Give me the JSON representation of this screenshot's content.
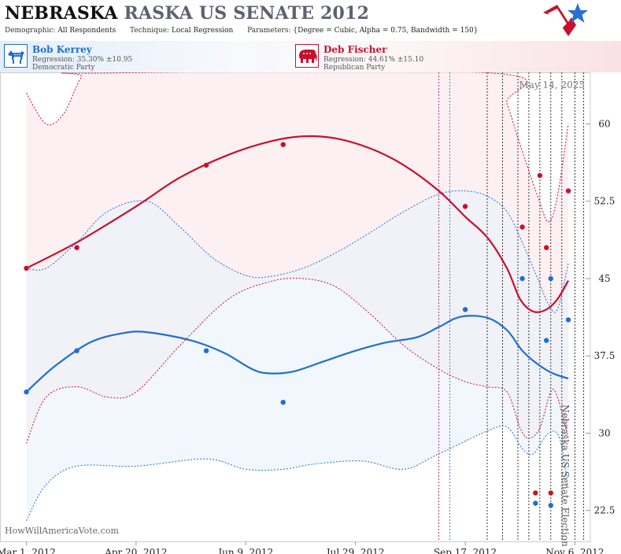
{
  "header": {
    "title_state": "NEBRASKA",
    "title_race": "RASKA US SENATE 2012",
    "demographic_label": "Demographic:",
    "demographic_value": "All Respondents",
    "technique_label": "Technique:",
    "technique_value": "Local Regression",
    "parameters_label": "Parameters:",
    "parameters_value": "{Degree = Cubic, Alpha = 0.75, Bandwidth = 150}",
    "logo_icon": "star-flag-logo-icon"
  },
  "candidates": {
    "dem": {
      "name": "Bob Kerrey",
      "regression": "Regression: 35.30% ±10.95",
      "party": "Democratic Party",
      "icon": "donkey-icon",
      "color": "#1f6fd0"
    },
    "rep": {
      "name": "Deb Fischer",
      "regression": "Regression: 44.61% ±15.10",
      "party": "Republican Party",
      "icon": "elephant-icon",
      "color": "#c8102e"
    }
  },
  "chart_labels": {
    "date": "May 14, 2025",
    "side_label": "Nebraska US Senate Election",
    "watermark": "HowWillAmericaVote.com"
  },
  "chart_data": {
    "type": "line",
    "x_start": "2012-02-18",
    "ylim": [
      19.5,
      65
    ],
    "yticks": [
      22.5,
      30,
      37.5,
      45,
      52.5,
      60
    ],
    "ytick_labels": [
      "22.5",
      "30",
      "37.5",
      "45",
      "52.5",
      "60"
    ],
    "xticks": [
      "2012-03-01",
      "2012-04-20",
      "2012-06-09",
      "2012-07-29",
      "2012-09-17",
      "2012-11-06"
    ],
    "xtick_labels": [
      "Mar 1, 2012",
      "Apr 20, 2012",
      "Jun 9, 2012",
      "Jul 29, 2012",
      "Sep 17, 2012",
      "Nov 6, 2012"
    ],
    "x_end": "2012-11-13",
    "grid": false,
    "colors": {
      "dem": "#1f6fd0",
      "rep": "#c8102e",
      "dem_band": "#e9f1fb",
      "rep_band": "#fbe6ea"
    },
    "poll_lines": [
      {
        "date": "2012-09-05",
        "color": "#a0246a"
      },
      {
        "date": "2012-09-10",
        "color": "#3a6fd0"
      },
      {
        "date": "2012-09-27",
        "color": "#222222"
      },
      {
        "date": "2012-10-04",
        "color": "#222222"
      },
      {
        "date": "2012-10-11",
        "color": "#222222"
      },
      {
        "date": "2012-10-16",
        "color": "#222222"
      },
      {
        "date": "2012-10-21",
        "color": "#222222"
      },
      {
        "date": "2012-10-26",
        "color": "#222222"
      },
      {
        "date": "2012-10-31",
        "color": "#222222"
      },
      {
        "date": "2012-11-06",
        "color": "#222222"
      },
      {
        "date": "2012-11-10",
        "color": "#222222"
      }
    ],
    "series": [
      {
        "name": "Deb Fischer",
        "points": [
          {
            "date": "2012-03-01",
            "value": 46.0
          },
          {
            "date": "2012-03-24",
            "value": 48.0
          },
          {
            "date": "2012-05-22",
            "value": 56.0
          },
          {
            "date": "2012-06-26",
            "value": 58.0
          },
          {
            "date": "2012-09-17",
            "value": 52.0
          },
          {
            "date": "2012-10-13",
            "value": 50.0
          },
          {
            "date": "2012-10-21",
            "value": 55.0
          },
          {
            "date": "2012-10-24",
            "value": 48.0
          },
          {
            "date": "2012-11-03",
            "value": 53.5
          },
          {
            "date": "2012-10-19",
            "value": 24.2
          },
          {
            "date": "2012-10-26",
            "value": 24.2
          }
        ],
        "fit": [
          {
            "date": "2012-03-01",
            "value": 46.0
          },
          {
            "date": "2012-03-24",
            "value": 48.5
          },
          {
            "date": "2012-04-20",
            "value": 52.0
          },
          {
            "date": "2012-05-10",
            "value": 54.8
          },
          {
            "date": "2012-06-01",
            "value": 57.0
          },
          {
            "date": "2012-06-20",
            "value": 58.3
          },
          {
            "date": "2012-07-05",
            "value": 58.8
          },
          {
            "date": "2012-07-20",
            "value": 58.6
          },
          {
            "date": "2012-08-05",
            "value": 57.6
          },
          {
            "date": "2012-08-20",
            "value": 56.0
          },
          {
            "date": "2012-09-05",
            "value": 53.5
          },
          {
            "date": "2012-09-17",
            "value": 51.0
          },
          {
            "date": "2012-09-27",
            "value": 49.0
          },
          {
            "date": "2012-10-06",
            "value": 46.0
          },
          {
            "date": "2012-10-12",
            "value": 43.0
          },
          {
            "date": "2012-10-18",
            "value": 41.8
          },
          {
            "date": "2012-10-24",
            "value": 42.0
          },
          {
            "date": "2012-10-29",
            "value": 43.0
          },
          {
            "date": "2012-11-03",
            "value": 44.8
          }
        ],
        "band_upper": [
          {
            "date": "2012-03-01",
            "value": 63.0
          },
          {
            "date": "2012-03-10",
            "value": 60.0
          },
          {
            "date": "2012-03-18",
            "value": 61.0
          },
          {
            "date": "2012-03-26",
            "value": 64.5
          },
          {
            "date": "2012-04-01",
            "value": 66.0
          },
          {
            "date": "2012-09-30",
            "value": 66.0
          },
          {
            "date": "2012-10-06",
            "value": 62.0
          },
          {
            "date": "2012-10-12",
            "value": 58.0
          },
          {
            "date": "2012-10-20",
            "value": 53.0
          },
          {
            "date": "2012-10-25",
            "value": 50.5
          },
          {
            "date": "2012-10-29",
            "value": 53.0
          },
          {
            "date": "2012-11-03",
            "value": 60.0
          }
        ],
        "band_lower": [
          {
            "date": "2012-03-01",
            "value": 29.0
          },
          {
            "date": "2012-03-10",
            "value": 33.5
          },
          {
            "date": "2012-03-24",
            "value": 34.5
          },
          {
            "date": "2012-04-07",
            "value": 33.5
          },
          {
            "date": "2012-04-20",
            "value": 34.0
          },
          {
            "date": "2012-05-10",
            "value": 38.5
          },
          {
            "date": "2012-06-01",
            "value": 43.0
          },
          {
            "date": "2012-06-20",
            "value": 44.7
          },
          {
            "date": "2012-07-05",
            "value": 45.0
          },
          {
            "date": "2012-07-20",
            "value": 44.2
          },
          {
            "date": "2012-08-05",
            "value": 41.5
          },
          {
            "date": "2012-08-20",
            "value": 38.5
          },
          {
            "date": "2012-09-05",
            "value": 36.2
          },
          {
            "date": "2012-09-17",
            "value": 35.0
          },
          {
            "date": "2012-09-27",
            "value": 34.5
          },
          {
            "date": "2012-10-06",
            "value": 34.0
          },
          {
            "date": "2012-10-12",
            "value": 30.5
          },
          {
            "date": "2012-10-16",
            "value": 29.5
          },
          {
            "date": "2012-10-21",
            "value": 30.5
          },
          {
            "date": "2012-10-26",
            "value": 34.0
          },
          {
            "date": "2012-10-29",
            "value": 33.5
          },
          {
            "date": "2012-11-03",
            "value": 29.5
          }
        ]
      },
      {
        "name": "Bob Kerrey",
        "points": [
          {
            "date": "2012-03-01",
            "value": 34.0
          },
          {
            "date": "2012-03-24",
            "value": 38.0
          },
          {
            "date": "2012-05-22",
            "value": 38.0
          },
          {
            "date": "2012-06-26",
            "value": 33.0
          },
          {
            "date": "2012-09-17",
            "value": 42.0
          },
          {
            "date": "2012-10-13",
            "value": 45.0
          },
          {
            "date": "2012-10-26",
            "value": 45.0
          },
          {
            "date": "2012-10-24",
            "value": 39.0
          },
          {
            "date": "2012-11-03",
            "value": 41.0
          },
          {
            "date": "2012-10-19",
            "value": 23.2
          },
          {
            "date": "2012-10-26",
            "value": 23.0
          }
        ],
        "fit": [
          {
            "date": "2012-03-01",
            "value": 34.0
          },
          {
            "date": "2012-03-14",
            "value": 36.5
          },
          {
            "date": "2012-03-30",
            "value": 38.8
          },
          {
            "date": "2012-04-14",
            "value": 39.7
          },
          {
            "date": "2012-04-25",
            "value": 39.8
          },
          {
            "date": "2012-05-15",
            "value": 39.0
          },
          {
            "date": "2012-05-30",
            "value": 37.8
          },
          {
            "date": "2012-06-12",
            "value": 36.2
          },
          {
            "date": "2012-06-20",
            "value": 35.8
          },
          {
            "date": "2012-07-01",
            "value": 36.0
          },
          {
            "date": "2012-07-15",
            "value": 37.0
          },
          {
            "date": "2012-07-29",
            "value": 38.0
          },
          {
            "date": "2012-08-12",
            "value": 38.8
          },
          {
            "date": "2012-08-26",
            "value": 39.3
          },
          {
            "date": "2012-09-05",
            "value": 40.3
          },
          {
            "date": "2012-09-15",
            "value": 41.3
          },
          {
            "date": "2012-09-27",
            "value": 41.2
          },
          {
            "date": "2012-10-06",
            "value": 40.0
          },
          {
            "date": "2012-10-13",
            "value": 38.0
          },
          {
            "date": "2012-10-20",
            "value": 36.7
          },
          {
            "date": "2012-10-27",
            "value": 35.8
          },
          {
            "date": "2012-11-03",
            "value": 35.3
          }
        ],
        "band_upper": [
          {
            "date": "2012-03-01",
            "value": 46.0
          },
          {
            "date": "2012-03-10",
            "value": 46.0
          },
          {
            "date": "2012-03-24",
            "value": 48.5
          },
          {
            "date": "2012-04-07",
            "value": 51.5
          },
          {
            "date": "2012-04-25",
            "value": 52.5
          },
          {
            "date": "2012-05-10",
            "value": 50.0
          },
          {
            "date": "2012-05-25",
            "value": 47.0
          },
          {
            "date": "2012-06-09",
            "value": 45.3
          },
          {
            "date": "2012-06-20",
            "value": 45.2
          },
          {
            "date": "2012-07-05",
            "value": 46.0
          },
          {
            "date": "2012-07-20",
            "value": 47.5
          },
          {
            "date": "2012-08-05",
            "value": 49.5
          },
          {
            "date": "2012-08-20",
            "value": 51.5
          },
          {
            "date": "2012-09-05",
            "value": 53.2
          },
          {
            "date": "2012-09-17",
            "value": 53.5
          },
          {
            "date": "2012-09-27",
            "value": 53.0
          },
          {
            "date": "2012-10-06",
            "value": 51.5
          },
          {
            "date": "2012-10-13",
            "value": 48.5
          },
          {
            "date": "2012-10-20",
            "value": 45.0
          },
          {
            "date": "2012-10-25",
            "value": 42.5
          },
          {
            "date": "2012-10-29",
            "value": 42.0
          },
          {
            "date": "2012-11-03",
            "value": 46.5
          }
        ],
        "band_lower": [
          {
            "date": "2012-03-01",
            "value": 21.5
          },
          {
            "date": "2012-03-10",
            "value": 25.0
          },
          {
            "date": "2012-03-24",
            "value": 26.8
          },
          {
            "date": "2012-04-20",
            "value": 26.8
          },
          {
            "date": "2012-05-22",
            "value": 27.5
          },
          {
            "date": "2012-06-09",
            "value": 26.5
          },
          {
            "date": "2012-06-26",
            "value": 26.5
          },
          {
            "date": "2012-07-10",
            "value": 27.0
          },
          {
            "date": "2012-08-01",
            "value": 27.3
          },
          {
            "date": "2012-08-20",
            "value": 26.5
          },
          {
            "date": "2012-09-05",
            "value": 28.0
          },
          {
            "date": "2012-09-27",
            "value": 30.2
          },
          {
            "date": "2012-10-06",
            "value": 30.6
          },
          {
            "date": "2012-10-13",
            "value": 28.5
          },
          {
            "date": "2012-10-18",
            "value": 28.0
          },
          {
            "date": "2012-10-25",
            "value": 30.0
          },
          {
            "date": "2012-10-30",
            "value": 29.5
          },
          {
            "date": "2012-11-03",
            "value": 24.5
          }
        ]
      }
    ]
  }
}
